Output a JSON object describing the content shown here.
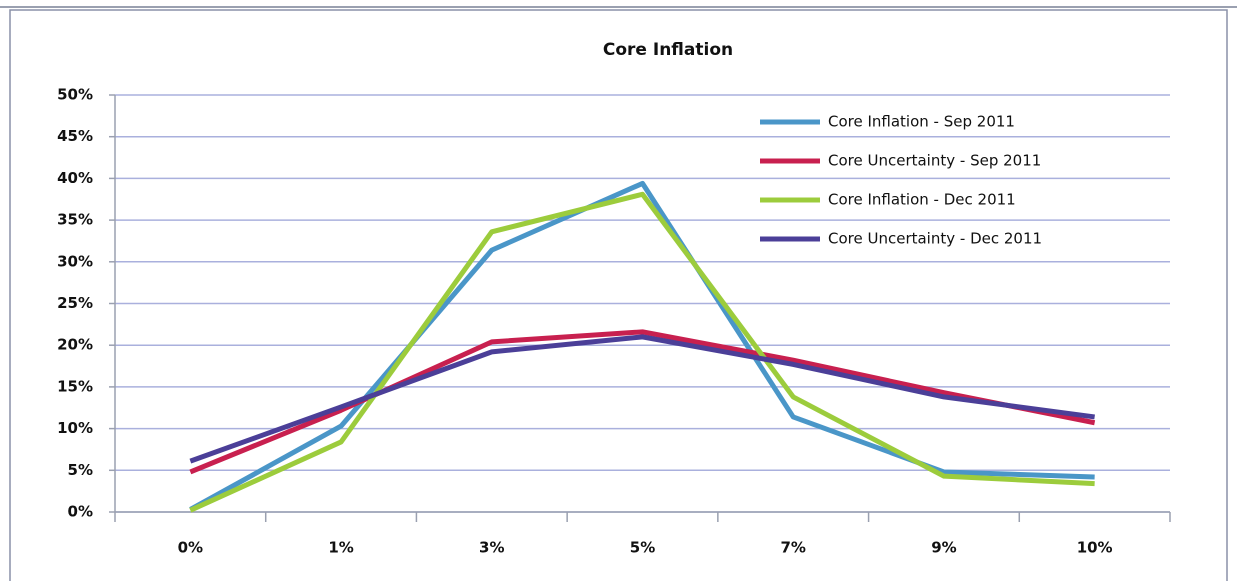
{
  "chart_data": {
    "type": "line",
    "title": "Core Inflation",
    "categories": [
      "0%",
      "1%",
      "3%",
      "5%",
      "7%",
      "9%",
      "10%"
    ],
    "series": [
      {
        "name": "Core Inflation - Sep 2011",
        "color": "#4a96c8",
        "values": [
          0.3,
          10.3,
          31.4,
          39.4,
          11.4,
          4.8,
          4.2
        ]
      },
      {
        "name": "Core Uncertainty - Sep 2011",
        "color": "#c8204f",
        "values": [
          4.8,
          12.2,
          20.4,
          21.6,
          18.2,
          14.3,
          10.7
        ]
      },
      {
        "name": "Core Inflation - Dec 2011",
        "color": "#9ccc3c",
        "values": [
          0.2,
          8.4,
          33.6,
          38.1,
          13.8,
          4.3,
          3.4
        ]
      },
      {
        "name": "Core Uncertainty - Dec 2011",
        "color": "#4b3f98",
        "values": [
          6.1,
          12.6,
          19.2,
          21.0,
          17.7,
          13.8,
          11.4
        ]
      }
    ],
    "ylim": [
      0,
      50
    ],
    "yticks": [
      {
        "value": 0,
        "label": "0%"
      },
      {
        "value": 5,
        "label": "5%"
      },
      {
        "value": 10,
        "label": "10%"
      },
      {
        "value": 15,
        "label": "15%"
      },
      {
        "value": 20,
        "label": "20%"
      },
      {
        "value": 25,
        "label": "25%"
      },
      {
        "value": 30,
        "label": "30%"
      },
      {
        "value": 35,
        "label": "35%"
      },
      {
        "value": 40,
        "label": "40%"
      },
      {
        "value": 45,
        "label": "45%"
      },
      {
        "value": 50,
        "label": "50%"
      }
    ],
    "grid": true,
    "legend": "upper right"
  }
}
